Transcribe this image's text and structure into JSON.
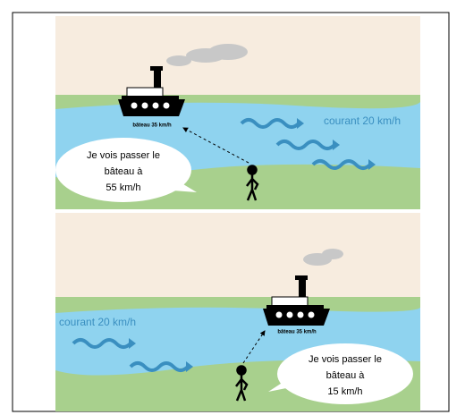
{
  "panels": [
    {
      "boat_label": "bâteau 35 km/h",
      "current_label": "courant 20 km/h",
      "speech": [
        "Je vois passer le",
        "bâteau à",
        "55 km/h"
      ]
    },
    {
      "boat_label": "bâteau 35 km/h",
      "current_label": "courant 20 km/h",
      "speech": [
        "Je vois passer le",
        "bâteau à",
        "15 km/h"
      ]
    }
  ]
}
